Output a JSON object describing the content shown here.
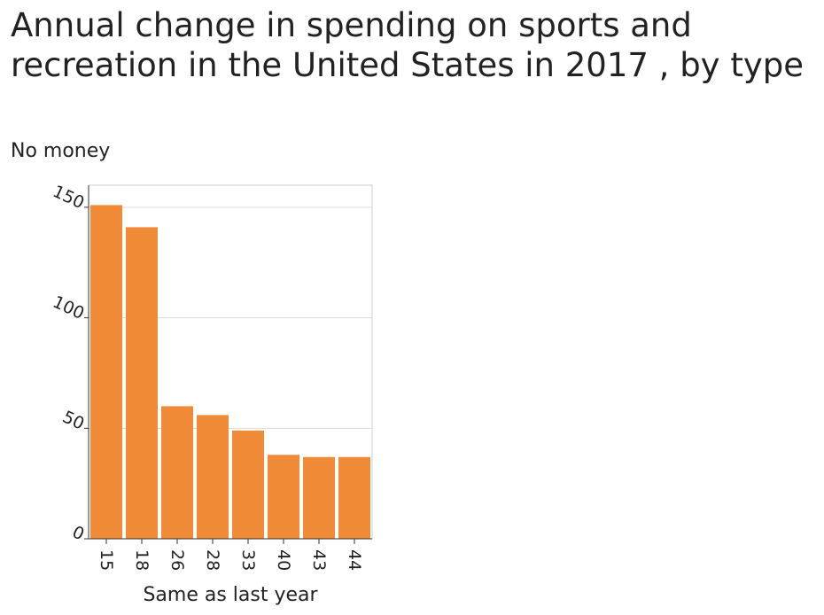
{
  "chart_data": {
    "type": "bar",
    "title": "Annual change in spending on sports and recreation in the United States in 2017 , by type",
    "ylabel": "No money",
    "xlabel": "Same as last year",
    "categories": [
      "15",
      "18",
      "26",
      "28",
      "33",
      "40",
      "43",
      "44"
    ],
    "values": [
      151,
      141,
      60,
      56,
      49,
      38,
      37,
      37
    ],
    "ylim": [
      0,
      160
    ],
    "yticks": [
      0,
      50,
      100,
      150
    ],
    "grid": true,
    "bar_color": "#ef8a37"
  }
}
